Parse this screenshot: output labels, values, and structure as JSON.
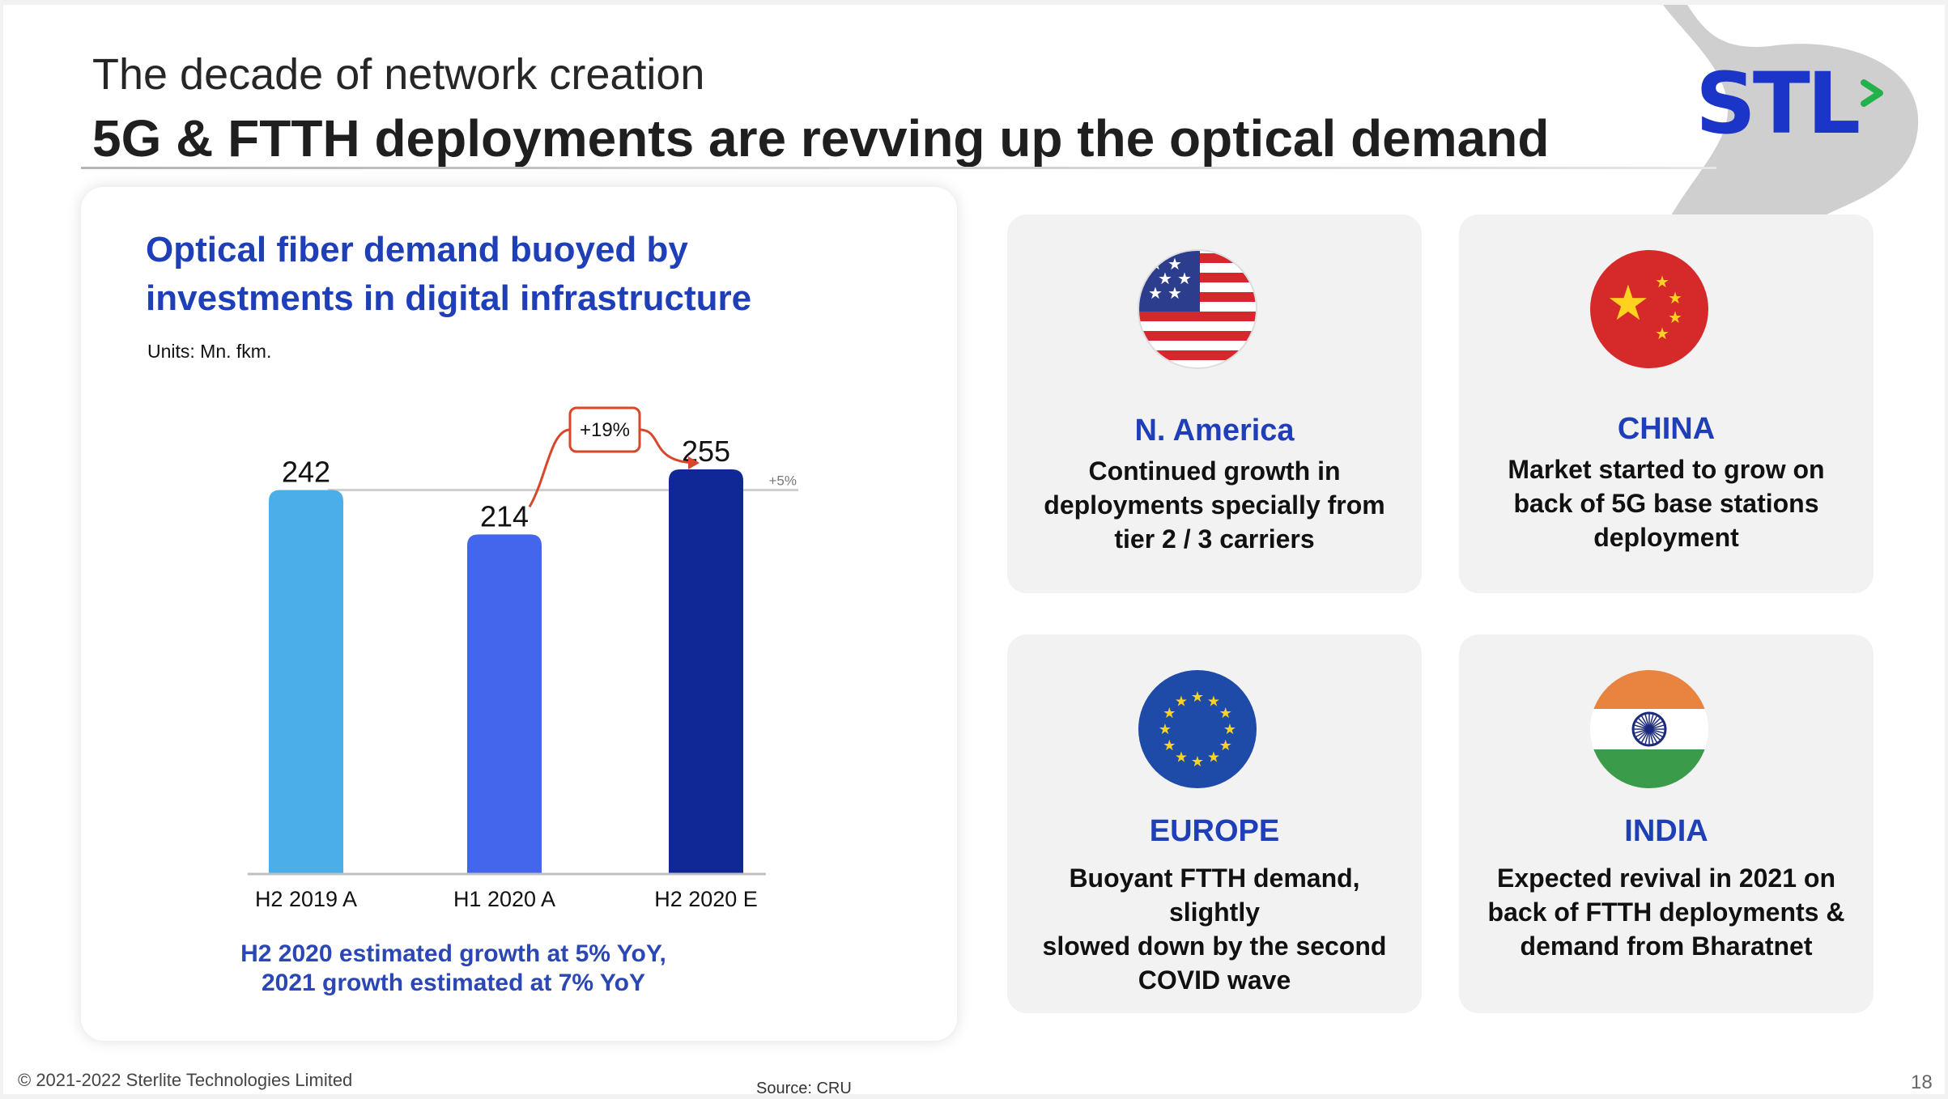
{
  "slide": {
    "kicker": "The decade of network creation",
    "headline": "5G & FTTH deployments are revving up the optical demand",
    "logo_text": "STL",
    "colors": {
      "brand_blue": "#1b35c9",
      "logo_green": "#22b24c",
      "title_blue": "#1f3fb8"
    }
  },
  "chart_card": {
    "title": "Optical fiber demand buoyed by investments in digital infrastructure",
    "units": "Units: Mn. fkm.",
    "note_line1": "H2 2020 estimated growth at 5% YoY,",
    "note_line2": "2021 growth estimated at 7% YoY"
  },
  "chart_data": {
    "type": "bar",
    "categories": [
      "H2 2019 A",
      "H1 2020 A",
      "H2 2020 E"
    ],
    "values": [
      242,
      214,
      255
    ],
    "colors": [
      "#4baee8",
      "#4366ec",
      "#0f2896"
    ],
    "annotations": [
      {
        "label": "+19%",
        "from": "H1 2020 A",
        "to": "H2 2020 E"
      },
      {
        "label": "+5%",
        "from": "H2 2019 A",
        "to": "H2 2020 E"
      }
    ],
    "ylim": [
      0,
      255
    ],
    "grid": false
  },
  "regions": [
    {
      "name": "N. America",
      "desc": [
        "Continued growth in",
        "deployments specially from",
        "tier 2 / 3 carriers"
      ],
      "icon": "usa-flag-icon"
    },
    {
      "name": "CHINA",
      "desc": [
        "Market started to grow on",
        "back of 5G base stations",
        "deployment"
      ],
      "icon": "china-flag-icon"
    },
    {
      "name": "EUROPE",
      "desc": [
        "Buoyant FTTH demand, slightly",
        "slowed down by the second",
        "COVID wave"
      ],
      "icon": "eu-flag-icon"
    },
    {
      "name": "INDIA",
      "desc": [
        "Expected revival in 2021 on",
        "back of FTTH deployments &",
        "demand from Bharatnet"
      ],
      "icon": "india-flag-icon"
    }
  ],
  "footer": {
    "copyright": "© 2021-2022 Sterlite Technologies Limited",
    "source": "Source: CRU",
    "page_number": "18"
  }
}
